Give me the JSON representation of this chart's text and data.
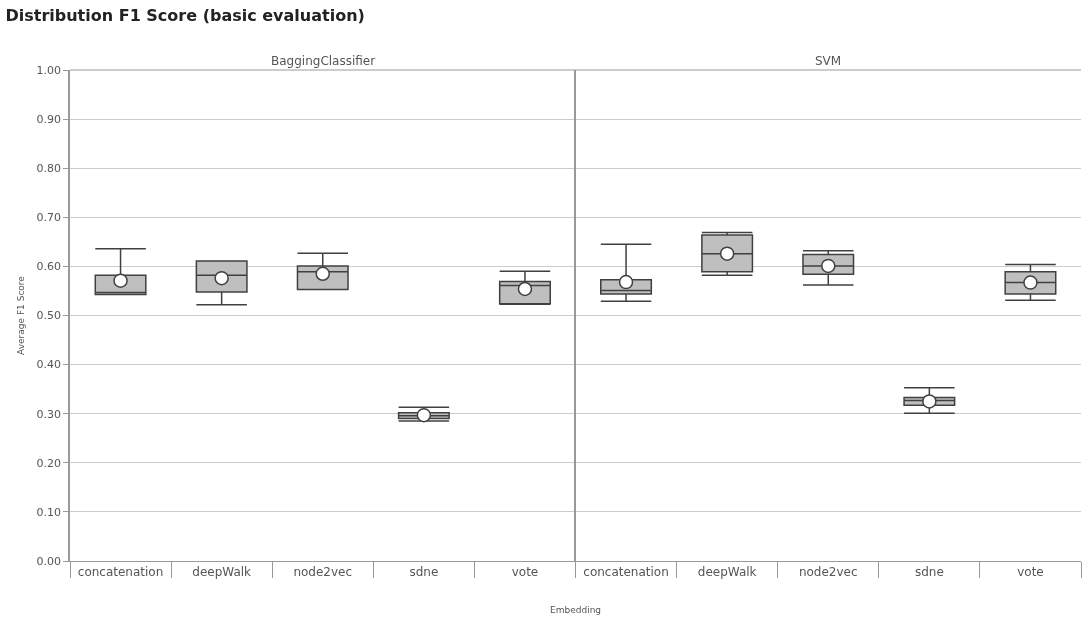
{
  "chart_data": [
    {
      "type": "box",
      "title": "Distribution F1 Score (basic evaluation)",
      "subtitle": "BaggingClassifier",
      "xlabel": "Embedding",
      "ylabel": "Average F1 Score",
      "color": "#bfbfbf",
      "categories": [
        "concatenation",
        "deepWalk",
        "node2vec",
        "sdne",
        "vote"
      ],
      "ylim": [
        0,
        1.0
      ],
      "yticks": [
        {
          "value": 0,
          "label": "0.00"
        },
        {
          "value": 0.1,
          "label": "0.10"
        },
        {
          "value": 0.2,
          "label": "0.20"
        },
        {
          "value": 0.3,
          "label": "0.30"
        },
        {
          "value": 0.4,
          "label": "0.40"
        },
        {
          "value": 0.5,
          "label": "0.50"
        },
        {
          "value": 0.6,
          "label": "0.60"
        },
        {
          "value": 0.7,
          "label": "0.70"
        },
        {
          "value": 0.8,
          "label": "0.80"
        },
        {
          "value": 0.9,
          "label": "0.90"
        },
        {
          "value": 1.0,
          "label": "1.00"
        }
      ],
      "grid": "y",
      "marker": "circle",
      "boxes": [
        {
          "low": 0.543,
          "q1": 0.543,
          "median": 0.547,
          "q3": 0.582,
          "high": 0.636,
          "mean": 0.571
        },
        {
          "low": 0.522,
          "q1": 0.548,
          "median": 0.582,
          "q3": 0.611,
          "high": 0.611,
          "mean": 0.576
        },
        {
          "low": 0.553,
          "q1": 0.553,
          "median": 0.589,
          "q3": 0.601,
          "high": 0.627,
          "mean": 0.585
        },
        {
          "low": 0.285,
          "q1": 0.29,
          "median": 0.296,
          "q3": 0.302,
          "high": 0.313,
          "mean": 0.297
        },
        {
          "low": 0.523,
          "q1": 0.524,
          "median": 0.561,
          "q3": 0.569,
          "high": 0.59,
          "mean": 0.554
        }
      ]
    },
    {
      "type": "box",
      "subtitle": "SVM",
      "color": "#bfbfbf",
      "categories": [
        "concatenation",
        "deepWalk",
        "node2vec",
        "sdne",
        "vote"
      ],
      "ylim": [
        0,
        1.0
      ],
      "yticks": [
        {
          "value": 0,
          "label": null
        },
        {
          "value": 0.1,
          "label": null
        },
        {
          "value": 0.2,
          "label": null
        },
        {
          "value": 0.3,
          "label": null
        },
        {
          "value": 0.4,
          "label": null
        },
        {
          "value": 0.5,
          "label": null
        },
        {
          "value": 0.6,
          "label": null
        },
        {
          "value": 0.7,
          "label": null
        },
        {
          "value": 0.8,
          "label": null
        },
        {
          "value": 0.9,
          "label": null
        },
        {
          "value": 1.0,
          "label": null
        }
      ],
      "grid": "y",
      "marker": "circle",
      "tick_labels": "x",
      "boxes": [
        {
          "low": 0.529,
          "q1": 0.544,
          "median": 0.551,
          "q3": 0.573,
          "high": 0.645,
          "mean": 0.568
        },
        {
          "low": 0.582,
          "q1": 0.589,
          "median": 0.626,
          "q3": 0.664,
          "high": 0.669,
          "mean": 0.626
        },
        {
          "low": 0.562,
          "q1": 0.584,
          "median": 0.601,
          "q3": 0.624,
          "high": 0.632,
          "mean": 0.601
        },
        {
          "low": 0.301,
          "q1": 0.317,
          "median": 0.327,
          "q3": 0.333,
          "high": 0.353,
          "mean": 0.325
        },
        {
          "low": 0.531,
          "q1": 0.544,
          "median": 0.567,
          "q3": 0.589,
          "high": 0.604,
          "mean": 0.567
        }
      ]
    }
  ]
}
